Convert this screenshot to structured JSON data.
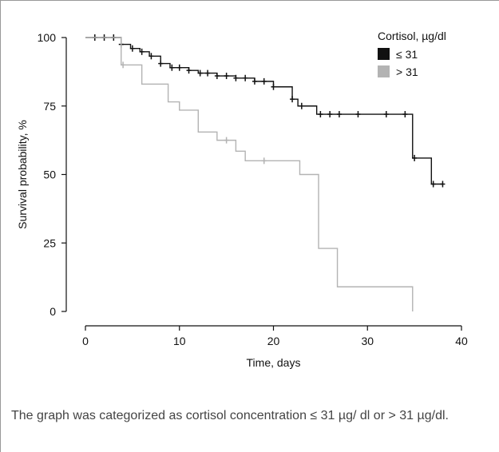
{
  "caption": "The graph was categorized as cortisol concentration ≤ 31 µg/ dl or > 31 µg/dl.",
  "chart_data": {
    "type": "line",
    "subtype": "kaplan-meier step",
    "xlabel": "Time, days",
    "ylabel": "Survival probability, %",
    "xlim": [
      0,
      40
    ],
    "ylim": [
      0,
      100
    ],
    "xticks": [
      0,
      10,
      20,
      30,
      40
    ],
    "yticks": [
      0,
      25,
      50,
      75,
      100
    ],
    "grid": false,
    "legend": {
      "title": "Cortisol, µg/dl",
      "position": "top-right"
    },
    "series": [
      {
        "name": "≤ 31",
        "color": "#111111",
        "steps": [
          [
            0,
            100
          ],
          [
            3.8,
            97.5
          ],
          [
            4.8,
            96
          ],
          [
            5.8,
            94.8
          ],
          [
            6.8,
            93.2
          ],
          [
            8,
            90.5
          ],
          [
            9,
            89
          ],
          [
            11,
            88
          ],
          [
            12,
            87
          ],
          [
            14,
            86
          ],
          [
            16,
            85.2
          ],
          [
            18,
            84
          ],
          [
            20,
            82
          ],
          [
            22,
            77.5
          ],
          [
            22.6,
            75
          ],
          [
            24.6,
            72
          ],
          [
            34.8,
            56
          ],
          [
            36.8,
            46.5
          ],
          [
            38,
            46.5
          ]
        ],
        "censored": [
          [
            1,
            100
          ],
          [
            2,
            100
          ],
          [
            3,
            100
          ],
          [
            3.8,
            97.5
          ],
          [
            5,
            96
          ],
          [
            6,
            94.8
          ],
          [
            7,
            93.2
          ],
          [
            8,
            90.5
          ],
          [
            9.2,
            89
          ],
          [
            10,
            89
          ],
          [
            11,
            88
          ],
          [
            12.2,
            87
          ],
          [
            13,
            87
          ],
          [
            14,
            86
          ],
          [
            15,
            86
          ],
          [
            16,
            85.2
          ],
          [
            17,
            85.2
          ],
          [
            18,
            84
          ],
          [
            19,
            84
          ],
          [
            20,
            82
          ],
          [
            22,
            77.5
          ],
          [
            23,
            75
          ],
          [
            25,
            72
          ],
          [
            26,
            72
          ],
          [
            27,
            72
          ],
          [
            29,
            72
          ],
          [
            32,
            72
          ],
          [
            34,
            72
          ],
          [
            35,
            56
          ],
          [
            37,
            46.5
          ],
          [
            38,
            46.5
          ]
        ]
      },
      {
        "name": "> 31",
        "color": "#b3b3b3",
        "steps": [
          [
            0,
            100
          ],
          [
            3.8,
            90
          ],
          [
            6,
            83
          ],
          [
            8.8,
            76.5
          ],
          [
            10,
            73.5
          ],
          [
            12,
            65.5
          ],
          [
            14,
            62.5
          ],
          [
            16,
            58.5
          ],
          [
            17,
            55
          ],
          [
            22.8,
            50
          ],
          [
            24.8,
            23
          ],
          [
            26.8,
            9
          ],
          [
            34.8,
            9
          ],
          [
            34.8,
            0
          ]
        ],
        "censored": [
          [
            4,
            90
          ],
          [
            15,
            62.5
          ],
          [
            19,
            55
          ]
        ]
      }
    ]
  }
}
